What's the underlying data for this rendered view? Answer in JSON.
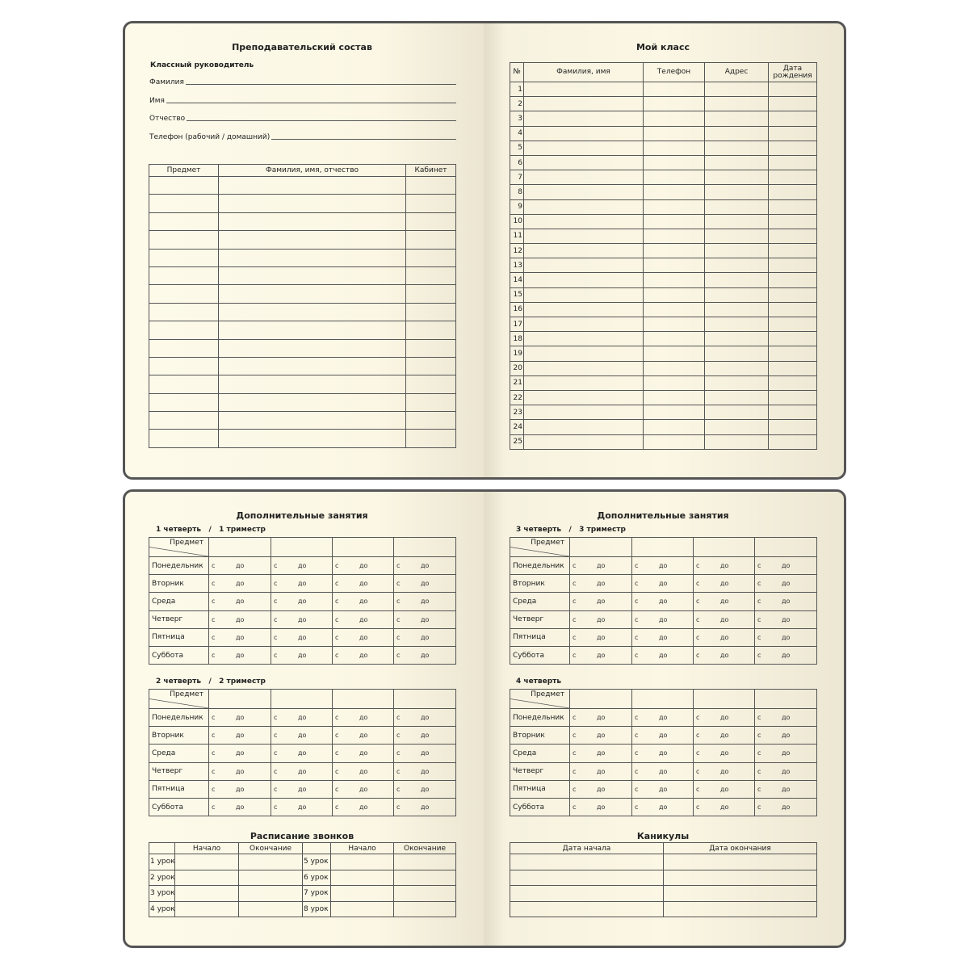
{
  "teachers": {
    "title": "Преподавательский состав",
    "subtitle": "Классный руководитель",
    "fields": [
      "Фамилия",
      "Имя",
      "Отчество",
      "Телефон (рабочий / домашний)"
    ],
    "headers": [
      "Предмет",
      "Фамилия, имя, отчество",
      "Кабинет"
    ],
    "row_count": 15
  },
  "my_class": {
    "title": "Мой класс",
    "headers": [
      "№",
      "Фамилия, имя",
      "Телефон",
      "Адрес",
      "Дата рождения"
    ],
    "rows": [
      "1",
      "2",
      "3",
      "4",
      "5",
      "6",
      "7",
      "8",
      "9",
      "10",
      "11",
      "12",
      "13",
      "14",
      "15",
      "16",
      "17",
      "18",
      "19",
      "20",
      "21",
      "22",
      "23",
      "24",
      "25"
    ]
  },
  "extra_left": {
    "title": "Дополнительные занятия",
    "q1": "1 четверть   /   1 триместр",
    "q2": "2 четверть   /   2 триместр"
  },
  "extra_right": {
    "title": "Дополнительные занятия",
    "q3": "3 четверть   /   3 триместр",
    "q4": "4 четверть"
  },
  "schedule": {
    "subject_header": "Предмет",
    "days": [
      "Понедельник",
      "Вторник",
      "Среда",
      "Четверг",
      "Пятница",
      "Суббота"
    ],
    "from": "с",
    "to": "до"
  },
  "bells": {
    "title": "Расписание звонков",
    "headers": [
      "",
      "Начало",
      "Окончание",
      "",
      "Начало",
      "Окончание"
    ],
    "lessons_left": [
      "1 урок",
      "2 урок",
      "3 урок",
      "4 урок"
    ],
    "lessons_right": [
      "5 урок",
      "6 урок",
      "7 урок",
      "8 урок"
    ]
  },
  "holidays": {
    "title": "Каникулы",
    "headers": [
      "Дата начала",
      "Дата окончания"
    ],
    "row_count": 4
  },
  "colors": {
    "border": "#555555",
    "paper": "#fdfaea"
  }
}
